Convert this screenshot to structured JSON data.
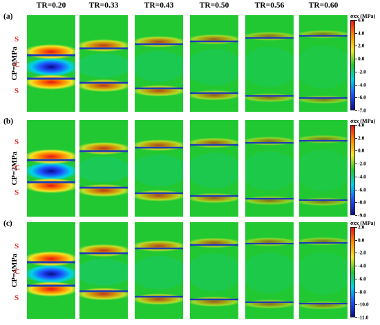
{
  "column_headers": [
    "TR=0.20",
    "TR=0.33",
    "TR=0.43",
    "TR=0.50",
    "TR=0.56",
    "TR=0.60"
  ],
  "colors": {
    "background_field": "#22c832",
    "label_red": "#e0201a",
    "colormap": [
      "#0a0a8c",
      "#1e50ff",
      "#00d2e6",
      "#22c832",
      "#f0e628",
      "#ff8c00",
      "#e61414"
    ]
  },
  "rows": [
    {
      "id": "(a)",
      "cp_label": "CP=0MPa",
      "sc_labels": [
        "S",
        "C",
        "S"
      ],
      "colorbar": {
        "title": "σxx (MPa)",
        "ticks": [
          "6.0",
          "4.0",
          "2.0",
          "0.0",
          "-2.0",
          "-4.0",
          "-6.0",
          "-7.0"
        ],
        "max": 6.0,
        "min": -7.0
      }
    },
    {
      "id": "(b)",
      "cp_label": "CP=2MPa",
      "sc_labels": [
        "S",
        "C",
        "S"
      ],
      "colorbar": {
        "title": "σxx (MPa)",
        "ticks": [
          "4.0",
          "2.0",
          "0.0",
          "-2.0",
          "-4.0",
          "-6.0",
          "-8.0",
          "-9.0"
        ],
        "max": 4.0,
        "min": -9.0
      }
    },
    {
      "id": "(c)",
      "cp_label": "CP=4MPa",
      "sc_labels": [
        "S",
        "C",
        "S"
      ],
      "colorbar": {
        "title": "σxx (MPa)",
        "ticks": [
          "2.0",
          "0.0",
          "-2.0",
          "-4.0",
          "-6.0",
          "-8.0",
          "-10.0",
          "-11.0"
        ],
        "max": 2.0,
        "min": -11.0
      }
    }
  ]
}
